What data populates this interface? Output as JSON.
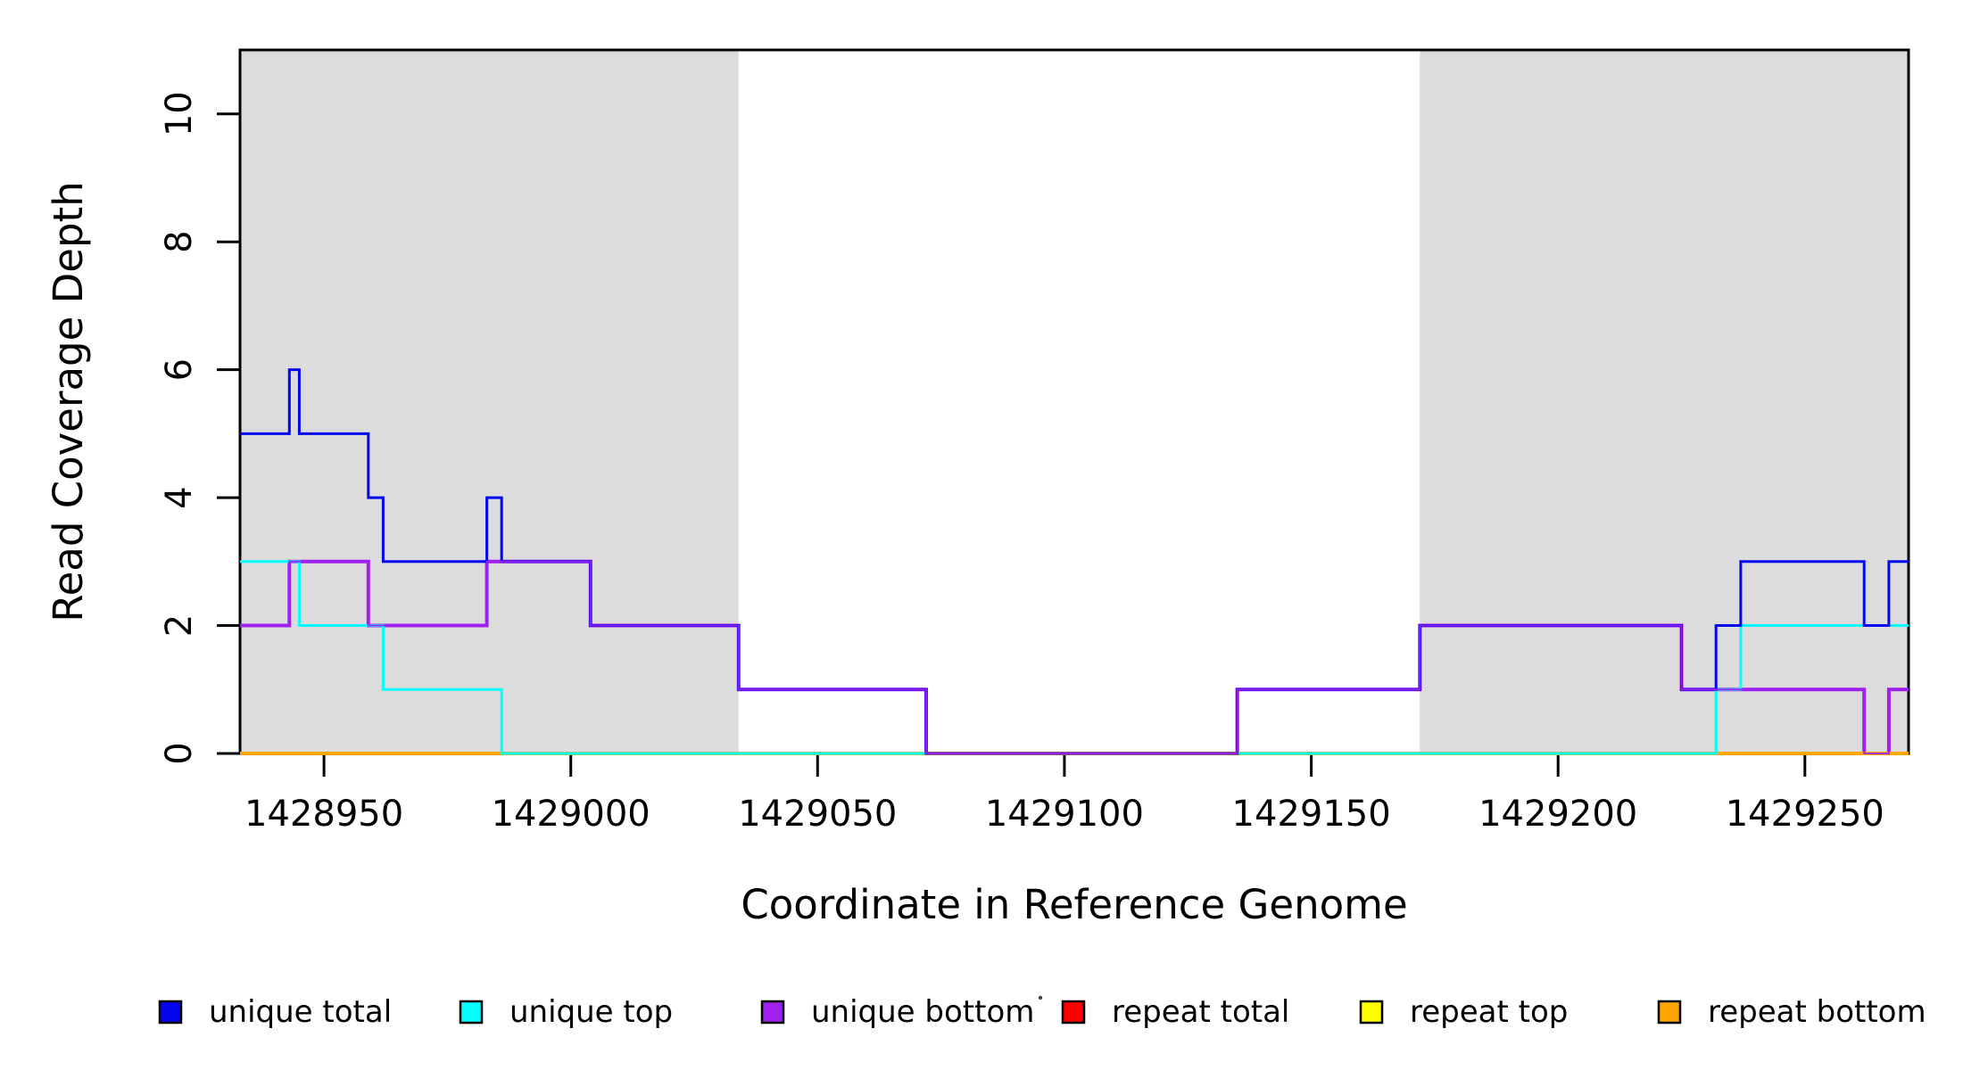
{
  "chart_data": {
    "type": "line",
    "subtype": "step",
    "title": "",
    "xlabel": "Coordinate in Reference Genome",
    "ylabel": "Read Coverage Depth",
    "xlim": [
      1428933,
      1429271
    ],
    "ylim": [
      0,
      11
    ],
    "grid": false,
    "x_ticks": [
      1428950,
      1429000,
      1429050,
      1429100,
      1429150,
      1429200,
      1429250
    ],
    "x_tick_labels": [
      "1428950",
      "1429000",
      "1429050",
      "1429100",
      "1429150",
      "1429200",
      "1429250"
    ],
    "y_ticks": [
      0,
      2,
      4,
      6,
      8,
      10
    ],
    "y_tick_labels": [
      "0",
      "2",
      "4",
      "6",
      "8",
      "10"
    ],
    "shaded_regions": [
      {
        "from": 1428933,
        "to": 1429034,
        "color": "#DCDCDC"
      },
      {
        "from": 1429172,
        "to": 1429271,
        "color": "#DCDCDC"
      }
    ],
    "series": [
      {
        "name": "unique total",
        "color": "#0404F0",
        "points": [
          [
            1428933,
            5
          ],
          [
            1428943,
            6
          ],
          [
            1428945,
            5
          ],
          [
            1428959,
            4
          ],
          [
            1428962,
            3
          ],
          [
            1428983,
            4
          ],
          [
            1428986,
            3
          ],
          [
            1429004,
            2
          ],
          [
            1429034,
            1
          ],
          [
            1429072,
            0
          ],
          [
            1429135,
            1
          ],
          [
            1429172,
            2
          ],
          [
            1429225,
            1
          ],
          [
            1429232,
            2
          ],
          [
            1429237,
            3
          ],
          [
            1429262,
            2
          ],
          [
            1429267,
            3
          ],
          [
            1429271,
            3
          ]
        ]
      },
      {
        "name": "unique top",
        "color": "#00FFFF",
        "points": [
          [
            1428933,
            3
          ],
          [
            1428945,
            2
          ],
          [
            1428962,
            1
          ],
          [
            1428986,
            0
          ],
          [
            1429232,
            1
          ],
          [
            1429237,
            2
          ],
          [
            1429271,
            2
          ]
        ]
      },
      {
        "name": "unique bottom",
        "color": "#A020F0",
        "points": [
          [
            1428933,
            2
          ],
          [
            1428943,
            3
          ],
          [
            1428959,
            2
          ],
          [
            1428983,
            3
          ],
          [
            1429004,
            2
          ],
          [
            1429034,
            1
          ],
          [
            1429072,
            0
          ],
          [
            1429135,
            1
          ],
          [
            1429172,
            2
          ],
          [
            1429225,
            1
          ],
          [
            1429262,
            0
          ],
          [
            1429267,
            1
          ],
          [
            1429271,
            1
          ]
        ]
      },
      {
        "name": "repeat total",
        "color": "#FF0000",
        "points": [
          [
            1428933,
            0
          ],
          [
            1429271,
            0
          ]
        ]
      },
      {
        "name": "repeat top",
        "color": "#FFFF00",
        "points": [
          [
            1428933,
            0
          ],
          [
            1429271,
            0
          ]
        ]
      },
      {
        "name": "repeat bottom",
        "color": "#FFA500",
        "points": [
          [
            1428933,
            0
          ],
          [
            1429271,
            0
          ]
        ]
      }
    ],
    "legend": [
      {
        "label": "unique total",
        "color": "#0404F0"
      },
      {
        "label": "unique top",
        "color": "#00FFFF"
      },
      {
        "label": "unique bottom",
        "color": "#A020F0"
      },
      {
        "label": "repeat total",
        "color": "#FF0000"
      },
      {
        "label": "repeat top",
        "color": "#FFFF00"
      },
      {
        "label": "repeat bottom",
        "color": "#FFA500"
      }
    ],
    "legend_position": "bottom",
    "axis_color": "#000000",
    "background_color": "#FFFFFF"
  }
}
